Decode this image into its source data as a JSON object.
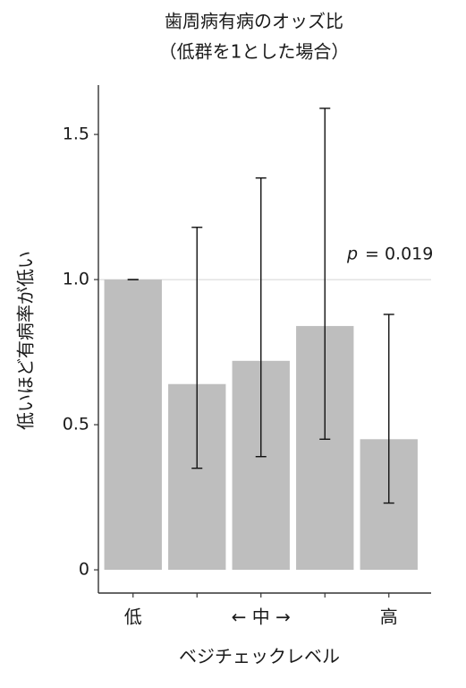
{
  "chart_data": {
    "type": "bar",
    "title": [
      "歯周病有病のオッズ比",
      "（低群を1とした場合）"
    ],
    "x_label": "ベジチェックレベル",
    "y_label": "低いほど有病率が低い",
    "categories": [
      "低",
      null,
      "← 中 →",
      null,
      "高"
    ],
    "values": [
      1.0,
      0.64,
      0.72,
      0.84,
      0.45
    ],
    "error_low": [
      1.0,
      0.35,
      0.39,
      0.45,
      0.23
    ],
    "error_high": [
      1.0,
      1.18,
      1.35,
      1.59,
      0.88
    ],
    "color": "#bebebe",
    "ylim": [
      -0.08,
      1.67
    ],
    "yticks": [
      0,
      0.5,
      {
        "value": 1,
        "label": "1.0"
      },
      1.5
    ],
    "reference_line": 1,
    "annotation_italic": "p",
    "annotation": "= 0.019"
  }
}
